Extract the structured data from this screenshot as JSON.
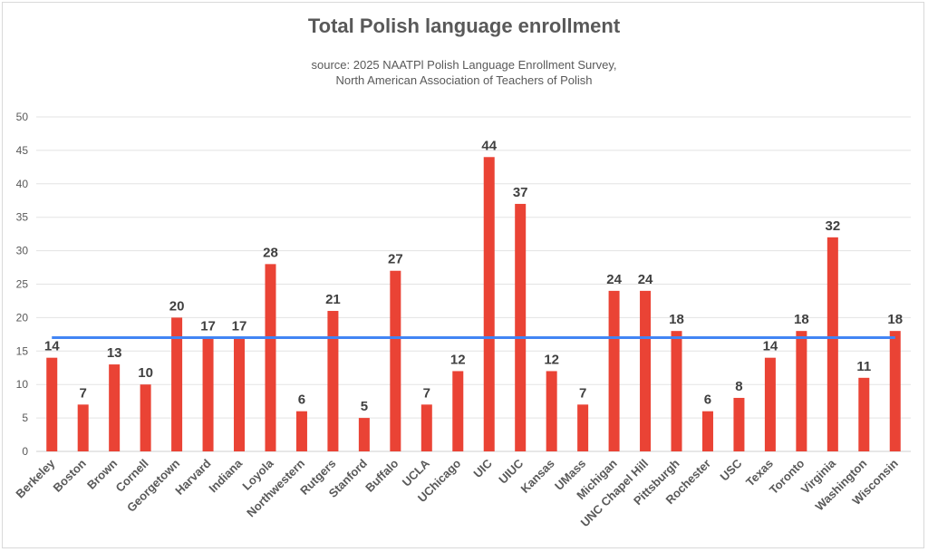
{
  "chart_data": {
    "type": "bar",
    "title": "Total Polish language enrollment",
    "subtitle": [
      "source: 2025 NAATPl Polish Language Enrollment Survey,",
      "North American Association of Teachers of Polish"
    ],
    "xlabel": "",
    "ylabel": "",
    "ylim": [
      0,
      50
    ],
    "yticks": [
      0,
      5,
      10,
      15,
      20,
      25,
      30,
      35,
      40,
      45,
      50
    ],
    "grid": true,
    "legend": "none",
    "categories": [
      "Berkeley",
      "Boston",
      "Brown",
      "Cornell",
      "Georgetown",
      "Harvard",
      "Indiana",
      "Loyola",
      "Northwestern",
      "Rutgers",
      "Stanford",
      "Buffalo",
      "UCLA",
      "UChicago",
      "UIC",
      "UIUC",
      "Kansas",
      "UMass",
      "Michigan",
      "UNC Chapel Hill",
      "Pittsburgh",
      "Rochester",
      "USC",
      "Texas",
      "Toronto",
      "Virginia",
      "Washington",
      "Wisconsin"
    ],
    "values": [
      14,
      7,
      13,
      10,
      20,
      17,
      17,
      28,
      6,
      21,
      5,
      27,
      7,
      12,
      44,
      37,
      12,
      7,
      24,
      24,
      18,
      6,
      8,
      14,
      18,
      32,
      11,
      18
    ],
    "reference_line": {
      "value": 17,
      "color": "#4285f4"
    },
    "bar_color": "#ea4335"
  }
}
